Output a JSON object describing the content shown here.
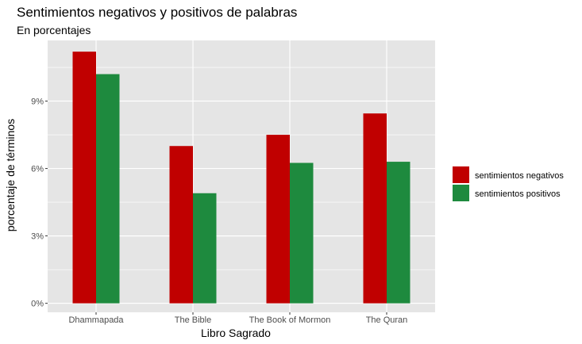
{
  "chart_data": {
    "type": "bar",
    "title": "Sentimientos negativos y positivos de palabras",
    "subtitle": "En porcentajes",
    "xlabel": "Libro Sagrado",
    "ylabel": "porcentaje de términos",
    "categories": [
      "Dhammapada",
      "The Bible",
      "The Book of Mormon",
      "The Quran"
    ],
    "series": [
      {
        "name": "sentimientos negativos",
        "values": [
          11.2,
          7.0,
          7.5,
          8.45
        ],
        "color": "#c00000"
      },
      {
        "name": "sentimientos positivos",
        "values": [
          10.2,
          4.9,
          6.25,
          6.3
        ],
        "color": "#1e8a3e"
      }
    ],
    "yticks": [
      0,
      3,
      6,
      9
    ],
    "ytick_labels": [
      "0%",
      "3%",
      "6%",
      "9%"
    ],
    "ylim": [
      -0.4,
      11.7
    ],
    "grid": true,
    "legend_position": "right",
    "panel_background": "#e5e5e5",
    "grid_color": "#ffffff"
  }
}
